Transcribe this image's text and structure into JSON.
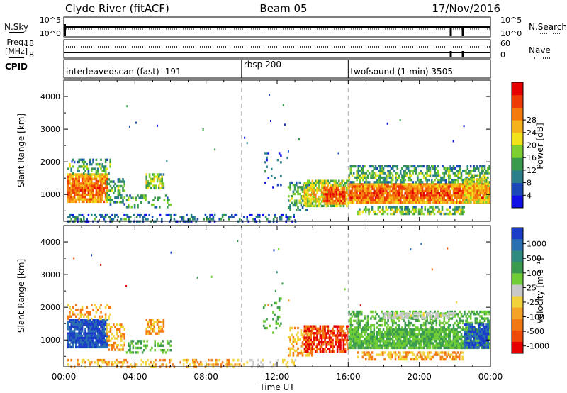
{
  "header": {
    "station": "Clyde River (fitACF)",
    "beam": "Beam 05",
    "date": "17/Nov/2016"
  },
  "strips": {
    "nsky_label": "N.Sky",
    "nsky_ticks": [
      "10^5",
      "10^0"
    ],
    "nsearch_label": "N.Search",
    "nsearch_ticks": [
      "10^5",
      "10^0"
    ],
    "freq_label_1": "Freq.",
    "freq_label_2": "[MHz]",
    "freq_ticks": [
      "18",
      "8"
    ],
    "nave_label": "Nave",
    "nave_ticks": [
      "60",
      "0"
    ],
    "cpid_label": "CPID"
  },
  "cpid_segments": [
    {
      "label": "interleavedscan (fast) -191",
      "start_hour": 0
    },
    {
      "label": "rbsp 200",
      "start_hour": 10
    },
    {
      "label": "twofsound (1-min) 3505",
      "start_hour": 16
    }
  ],
  "axes": {
    "xlabel": "Time UT",
    "xticks": [
      "00:00",
      "04:00",
      "08:00",
      "12:00",
      "16:00",
      "20:00",
      "00:00"
    ],
    "ylabel": "Slant Range [km]",
    "yticks": [
      "1000",
      "2000",
      "3000",
      "4000"
    ]
  },
  "power_scale": {
    "title": "Power [dB]",
    "ticks": [
      "4",
      "8",
      "12",
      "16",
      "20",
      "24",
      "28"
    ],
    "colors": [
      "#1010e6",
      "#1a48b8",
      "#2a7f8a",
      "#3a9a4c",
      "#7ccf2e",
      "#f2e21a",
      "#f5b21a",
      "#f47a0c",
      "#ee3a06",
      "#e60000"
    ]
  },
  "velocity_scale": {
    "title": "Velocity [m s⁻¹]",
    "ticks": [
      "1000",
      "500",
      "100",
      "25",
      "-25",
      "-100",
      "-500",
      "-1000"
    ],
    "colors": [
      "#1a3cc8",
      "#2a6fb0",
      "#2f8a80",
      "#3a9a50",
      "#6fcc35",
      "#c8c8c8",
      "#f2d23a",
      "#f4a326",
      "#f27814",
      "#ee4a08",
      "#e60000"
    ]
  },
  "chart_data": {
    "type": "heatmap",
    "x_range_hours": [
      0,
      24
    ],
    "y_range_km": [
      180,
      4500
    ],
    "mode_change_hours": [
      10,
      16
    ],
    "panels": [
      {
        "name": "Power",
        "scale": "power_scale",
        "regions": [
          {
            "t0": 0.2,
            "t1": 2.4,
            "r0": 750,
            "r1": 1650,
            "value": 26,
            "density": 0.92
          },
          {
            "t0": 0.2,
            "t1": 2.6,
            "r0": 1650,
            "r1": 2100,
            "value": 14,
            "density": 0.35
          },
          {
            "t0": 2.4,
            "t1": 3.4,
            "r0": 700,
            "r1": 1500,
            "value": 14,
            "density": 0.5
          },
          {
            "t0": 4.6,
            "t1": 5.6,
            "r0": 1200,
            "r1": 1650,
            "value": 18,
            "density": 0.65
          },
          {
            "t0": 3.5,
            "t1": 6.0,
            "r0": 650,
            "r1": 1000,
            "value": 14,
            "density": 0.3
          },
          {
            "t0": 0.2,
            "t1": 10.0,
            "r0": 180,
            "r1": 420,
            "value": 10,
            "density": 0.35
          },
          {
            "t0": 10.0,
            "t1": 13.0,
            "r0": 180,
            "r1": 420,
            "value": 8,
            "density": 0.3
          },
          {
            "t0": 11.2,
            "t1": 12.2,
            "r0": 1200,
            "r1": 2300,
            "value": 8,
            "density": 0.12
          },
          {
            "t0": 12.6,
            "t1": 14.0,
            "r0": 550,
            "r1": 1400,
            "value": 14,
            "density": 0.45
          },
          {
            "t0": 13.5,
            "t1": 16.0,
            "r0": 650,
            "r1": 1450,
            "value": 20,
            "density": 0.75
          },
          {
            "t0": 14.6,
            "t1": 15.8,
            "r0": 750,
            "r1": 1250,
            "value": 28,
            "density": 0.9
          },
          {
            "t0": 16.0,
            "t1": 23.9,
            "r0": 750,
            "r1": 1350,
            "value": 27,
            "density": 0.95
          },
          {
            "t0": 16.0,
            "t1": 23.9,
            "r0": 1350,
            "r1": 1900,
            "value": 14,
            "density": 0.55
          },
          {
            "t0": 16.5,
            "t1": 22.5,
            "r0": 380,
            "r1": 650,
            "value": 16,
            "density": 0.55
          },
          {
            "t0": 22.5,
            "t1": 23.9,
            "r0": 800,
            "r1": 1500,
            "value": 22,
            "density": 0.8
          }
        ]
      },
      {
        "name": "Velocity",
        "scale": "velocity_scale",
        "regions": [
          {
            "t0": 0.2,
            "t1": 2.4,
            "r0": 750,
            "r1": 1650,
            "value": 1000,
            "density": 0.9
          },
          {
            "t0": 0.2,
            "t1": 2.6,
            "r0": 1650,
            "r1": 2100,
            "value": -100,
            "density": 0.35
          },
          {
            "t0": 2.4,
            "t1": 3.4,
            "r0": 700,
            "r1": 1500,
            "value": -100,
            "density": 0.5
          },
          {
            "t0": 4.6,
            "t1": 5.6,
            "r0": 1200,
            "r1": 1650,
            "value": -100,
            "density": 0.6
          },
          {
            "t0": 3.5,
            "t1": 6.0,
            "r0": 650,
            "r1": 1000,
            "value": 100,
            "density": 0.3
          },
          {
            "t0": 0.2,
            "t1": 10.0,
            "r0": 180,
            "r1": 420,
            "value": -100,
            "density": 0.3
          },
          {
            "t0": 10.0,
            "t1": 13.0,
            "r0": 180,
            "r1": 420,
            "value": -25,
            "density": 0.25
          },
          {
            "t0": 11.2,
            "t1": 12.2,
            "r0": 1200,
            "r1": 2300,
            "value": 100,
            "density": 0.12
          },
          {
            "t0": 12.6,
            "t1": 14.0,
            "r0": 550,
            "r1": 1400,
            "value": -100,
            "density": 0.45
          },
          {
            "t0": 13.5,
            "t1": 16.0,
            "r0": 650,
            "r1": 1450,
            "value": -500,
            "density": 0.7
          },
          {
            "t0": 16.0,
            "t1": 23.9,
            "r0": 750,
            "r1": 1350,
            "value": 100,
            "density": 0.9
          },
          {
            "t0": 16.0,
            "t1": 23.9,
            "r0": 1350,
            "r1": 1900,
            "value": 100,
            "density": 0.5
          },
          {
            "t0": 18.0,
            "t1": 22.0,
            "r0": 1650,
            "r1": 1850,
            "value": 0,
            "density": 0.6
          },
          {
            "t0": 16.5,
            "t1": 22.5,
            "r0": 380,
            "r1": 650,
            "value": -100,
            "density": 0.5
          },
          {
            "t0": 22.5,
            "t1": 23.9,
            "r0": 800,
            "r1": 1500,
            "value": 1000,
            "density": 0.8
          }
        ]
      }
    ]
  }
}
